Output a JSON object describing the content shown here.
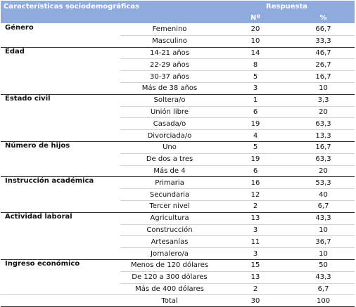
{
  "header": {
    "category_label": "Características sociodemográficas",
    "response_label": "Respuesta",
    "count_label": "Nº",
    "percent_label": "%"
  },
  "groups": [
    {
      "name": "Género",
      "rows": [
        {
          "label": "Femenino",
          "n": "20",
          "pct": "66,7"
        },
        {
          "label": "Masculino",
          "n": "10",
          "pct": "33,3"
        }
      ]
    },
    {
      "name": "Edad",
      "rows": [
        {
          "label": "14-21 años",
          "n": "14",
          "pct": "46,7"
        },
        {
          "label": "22-29 años",
          "n": "8",
          "pct": "26,7"
        },
        {
          "label": "30-37 años",
          "n": "5",
          "pct": "16,7"
        },
        {
          "label": "Más de 38 años",
          "n": "3",
          "pct": "10"
        }
      ]
    },
    {
      "name": "Estado civil",
      "rows": [
        {
          "label": "Soltera/o",
          "n": "1",
          "pct": "3,3"
        },
        {
          "label": "Unión libre",
          "n": "6",
          "pct": "20"
        },
        {
          "label": "Casada/o",
          "n": "19",
          "pct": "63,3"
        },
        {
          "label": "Divorciada/o",
          "n": "4",
          "pct": "13,3"
        }
      ]
    },
    {
      "name": "Número de hijos",
      "rows": [
        {
          "label": "Uno",
          "n": "5",
          "pct": "16,7"
        },
        {
          "label": "De dos a tres",
          "n": "19",
          "pct": "63,3"
        },
        {
          "label": "Más de 4",
          "n": "6",
          "pct": "20"
        }
      ]
    },
    {
      "name": "Instrucción académica",
      "rows": [
        {
          "label": "Primaria",
          "n": "16",
          "pct": "53,3"
        },
        {
          "label": "Secundaria",
          "n": "12",
          "pct": "40"
        },
        {
          "label": "Tercer nivel",
          "n": "2",
          "pct": "6,7"
        }
      ]
    },
    {
      "name": "Actividad laboral",
      "rows": [
        {
          "label": "Agricultura",
          "n": "13",
          "pct": "43,3"
        },
        {
          "label": "Construcción",
          "n": "3",
          "pct": "10"
        },
        {
          "label": "Artesanías",
          "n": "11",
          "pct": "36,7"
        },
        {
          "label": "Jornalero/a",
          "n": "3",
          "pct": "10"
        }
      ]
    },
    {
      "name": "Ingreso económico",
      "rows": [
        {
          "label": "Menos de 120 dólares",
          "n": "15",
          "pct": "50"
        },
        {
          "label": "De 120 a 300 dólares",
          "n": "13",
          "pct": "43,3"
        },
        {
          "label": "Más de 400 dólares",
          "n": "2",
          "pct": "6,7"
        }
      ]
    }
  ],
  "total": {
    "label": "Total",
    "n": "30",
    "pct": "100"
  }
}
